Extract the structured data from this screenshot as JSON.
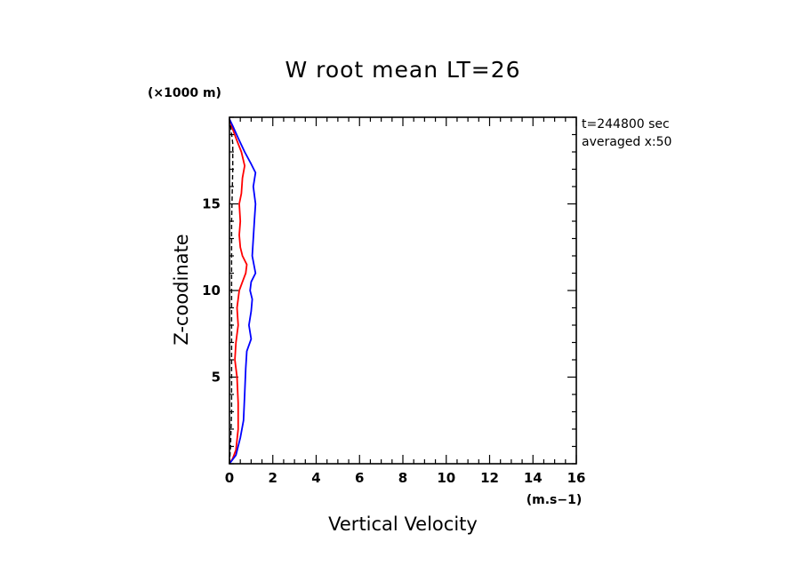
{
  "chart_data": {
    "type": "line",
    "title": "W root mean LT=26",
    "xlabel": "Vertical Velocity",
    "ylabel": "Z-coodinate",
    "x_unit": "(m.s−1)",
    "y_unit": "(×1000 m)",
    "annotations": [
      "t=244800 sec",
      "averaged  x:50"
    ],
    "xlim": [
      0,
      16
    ],
    "ylim": [
      0,
      20
    ],
    "x_ticks": [
      0,
      2,
      4,
      6,
      8,
      10,
      12,
      14,
      16
    ],
    "y_ticks": [
      5,
      10,
      15
    ],
    "grid": false,
    "series": [
      {
        "color": "#ff0000",
        "style": "solid",
        "points": [
          [
            0,
            0
          ],
          [
            0.15,
            0.3
          ],
          [
            0.3,
            0.8
          ],
          [
            0.4,
            2.0
          ],
          [
            0.4,
            3.5
          ],
          [
            0.35,
            5.0
          ],
          [
            0.25,
            6.0
          ],
          [
            0.3,
            7.0
          ],
          [
            0.4,
            8.0
          ],
          [
            0.35,
            9.0
          ],
          [
            0.45,
            10.0
          ],
          [
            0.6,
            10.5
          ],
          [
            0.75,
            11.0
          ],
          [
            0.8,
            11.5
          ],
          [
            0.6,
            12.0
          ],
          [
            0.5,
            12.5
          ],
          [
            0.45,
            13.2
          ],
          [
            0.5,
            14.0
          ],
          [
            0.45,
            15.0
          ],
          [
            0.55,
            15.6
          ],
          [
            0.6,
            16.5
          ],
          [
            0.7,
            17.2
          ],
          [
            0.55,
            18.0
          ],
          [
            0.3,
            18.8
          ],
          [
            0.1,
            19.5
          ],
          [
            0,
            19.9
          ]
        ]
      },
      {
        "color": "#0000ff",
        "style": "solid",
        "points": [
          [
            0,
            0
          ],
          [
            0.3,
            0.5
          ],
          [
            0.5,
            1.5
          ],
          [
            0.65,
            2.5
          ],
          [
            0.7,
            4.0
          ],
          [
            0.75,
            5.5
          ],
          [
            0.8,
            6.5
          ],
          [
            1.0,
            7.2
          ],
          [
            0.9,
            8.0
          ],
          [
            1.0,
            8.8
          ],
          [
            1.05,
            9.5
          ],
          [
            0.95,
            10.0
          ],
          [
            1.0,
            10.5
          ],
          [
            1.2,
            11.0
          ],
          [
            1.05,
            12.0
          ],
          [
            1.1,
            13.0
          ],
          [
            1.15,
            14.0
          ],
          [
            1.2,
            15.0
          ],
          [
            1.1,
            16.0
          ],
          [
            1.2,
            16.8
          ],
          [
            1.0,
            17.3
          ],
          [
            0.7,
            18.0
          ],
          [
            0.4,
            18.8
          ],
          [
            0.15,
            19.5
          ],
          [
            0,
            19.9
          ]
        ]
      },
      {
        "color": "#000000",
        "style": "dashed",
        "points": [
          [
            0,
            0
          ],
          [
            0.05,
            1
          ],
          [
            0.1,
            3
          ],
          [
            0.1,
            6
          ],
          [
            0.1,
            10
          ],
          [
            0.1,
            14
          ],
          [
            0.15,
            17
          ],
          [
            0.15,
            18.5
          ],
          [
            0.05,
            19.5
          ],
          [
            0,
            19.9
          ]
        ]
      }
    ]
  }
}
